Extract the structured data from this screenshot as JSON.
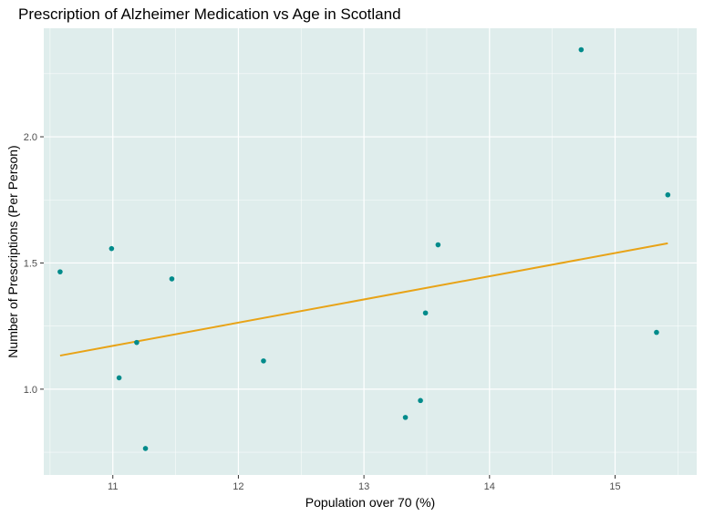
{
  "chart_data": {
    "type": "scatter",
    "title": "Prescription of Alzheimer Medication vs Age in Scotland",
    "xlabel": "Population over 70 (%)",
    "ylabel": "Number of Prescriptions (Per Person)",
    "xlim": [
      10.45,
      15.65
    ],
    "ylim": [
      0.66,
      2.43
    ],
    "x_ticks": [
      11,
      12,
      13,
      14,
      15
    ],
    "x_tick_labels": [
      "11",
      "12",
      "13",
      "14",
      "15"
    ],
    "y_ticks": [
      1.0,
      1.5,
      2.0
    ],
    "y_tick_labels": [
      "1.0",
      "1.5",
      "2.0"
    ],
    "grid": true,
    "legend": "none",
    "points": [
      {
        "x": 10.58,
        "y": 1.465
      },
      {
        "x": 10.99,
        "y": 1.557
      },
      {
        "x": 11.05,
        "y": 1.045
      },
      {
        "x": 11.19,
        "y": 1.185
      },
      {
        "x": 11.26,
        "y": 0.765
      },
      {
        "x": 11.47,
        "y": 1.437
      },
      {
        "x": 12.2,
        "y": 1.112
      },
      {
        "x": 13.33,
        "y": 0.888
      },
      {
        "x": 13.45,
        "y": 0.955
      },
      {
        "x": 13.49,
        "y": 1.302
      },
      {
        "x": 13.59,
        "y": 1.572
      },
      {
        "x": 14.73,
        "y": 2.345
      },
      {
        "x": 15.33,
        "y": 1.225
      },
      {
        "x": 15.42,
        "y": 1.77
      }
    ],
    "trend_line": {
      "x": [
        10.58,
        15.42
      ],
      "y": [
        1.133,
        1.578
      ]
    },
    "colors": {
      "panel": "#dfedec",
      "grid": "#ffffff",
      "point": "#008b8b",
      "trend": "#e8a317"
    }
  }
}
